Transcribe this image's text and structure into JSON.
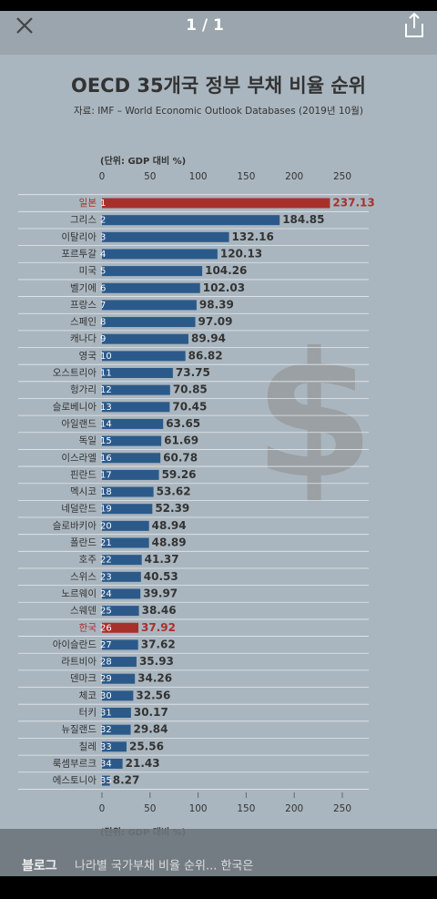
{
  "viewer": {
    "counter": "1 / 1",
    "caption_source": "블로그",
    "caption_text": "나라별 국가부채 비율 순위... 한국은"
  },
  "chart_data": {
    "type": "hbar",
    "title": "OECD 35개국 정부 부채 비율 순위",
    "subtitle": "자료: IMF – World Economic Outlook Databases (2019년 10월)",
    "axis_label": "(단위: GDP 대비 %)",
    "categories": [
      "일본",
      "그리스",
      "이탈리아",
      "포르투갈",
      "미국",
      "벨기에",
      "프랑스",
      "스페인",
      "캐나다",
      "영국",
      "오스트리아",
      "헝가리",
      "슬로베니아",
      "아일랜드",
      "독일",
      "이스라엘",
      "핀란드",
      "멕시코",
      "네덜란드",
      "슬로바키아",
      "폴란드",
      "호주",
      "스위스",
      "노르웨이",
      "스웨덴",
      "한국",
      "아이슬란드",
      "라트비아",
      "덴마크",
      "체코",
      "터키",
      "뉴질랜드",
      "칠레",
      "룩셈부르크",
      "에스토니아"
    ],
    "ranks": [
      1,
      2,
      3,
      4,
      5,
      6,
      7,
      8,
      9,
      10,
      11,
      12,
      13,
      14,
      15,
      16,
      17,
      18,
      19,
      20,
      21,
      22,
      23,
      24,
      25,
      26,
      27,
      28,
      29,
      30,
      31,
      32,
      33,
      34,
      35
    ],
    "values": [
      237.13,
      184.85,
      132.16,
      120.13,
      104.26,
      102.03,
      98.39,
      97.09,
      89.94,
      86.82,
      73.75,
      70.85,
      70.45,
      63.65,
      61.69,
      60.78,
      59.26,
      53.62,
      52.39,
      48.94,
      48.89,
      41.37,
      40.53,
      39.97,
      38.46,
      37.92,
      37.62,
      35.93,
      34.26,
      32.56,
      30.17,
      29.84,
      25.56,
      21.43,
      8.27
    ],
    "colors": [
      "#a8302c",
      "#2b5a8a",
      "#2b5a8a",
      "#2b5a8a",
      "#2b5a8a",
      "#2b5a8a",
      "#2b5a8a",
      "#2b5a8a",
      "#2b5a8a",
      "#2b5a8a",
      "#2b5a8a",
      "#2b5a8a",
      "#2b5a8a",
      "#2b5a8a",
      "#2b5a8a",
      "#2b5a8a",
      "#2b5a8a",
      "#2b5a8a",
      "#2b5a8a",
      "#2b5a8a",
      "#2b5a8a",
      "#2b5a8a",
      "#2b5a8a",
      "#2b5a8a",
      "#2b5a8a",
      "#a8302c",
      "#2b5a8a",
      "#2b5a8a",
      "#2b5a8a",
      "#2b5a8a",
      "#2b5a8a",
      "#2b5a8a",
      "#2b5a8a",
      "#2b5a8a",
      "#2b5a8a"
    ],
    "xlim": [
      0,
      250
    ],
    "xticks": [
      0,
      50,
      100,
      150,
      200,
      250
    ]
  }
}
